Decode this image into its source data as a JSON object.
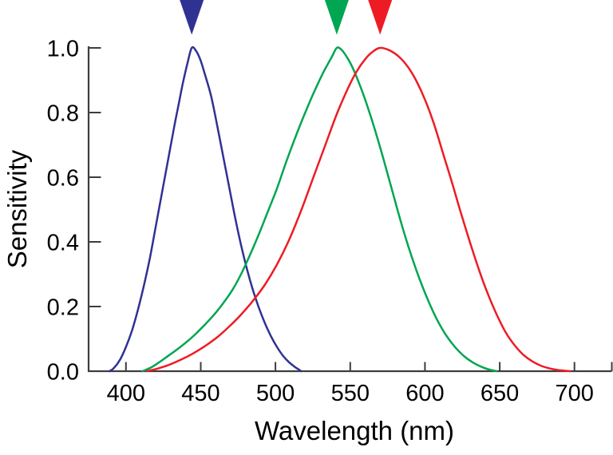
{
  "figure": {
    "background": "#ffffff",
    "axis_color": "#3d3d3d",
    "text_color": "#000000"
  },
  "chart_data": {
    "type": "line",
    "title": "",
    "xlabel": "Wavelength (nm)",
    "ylabel": "Sensitivity",
    "xlim": [
      375,
      725
    ],
    "ylim": [
      0,
      1.0
    ],
    "grid": false,
    "legend": "none",
    "x_tick_values": [
      400,
      450,
      500,
      550,
      600,
      650,
      700
    ],
    "x_tick_labels": [
      "400",
      "450",
      "500",
      "550",
      "600",
      "650",
      "700"
    ],
    "x_axis_end_tick": 725,
    "y_tick_values": [
      0,
      0.2,
      0.4,
      0.6,
      0.8,
      1.0
    ],
    "y_tick_labels": [
      "0.0",
      "0.2",
      "0.4",
      "0.6",
      "0.8",
      "1.0"
    ],
    "series": [
      {
        "id": "blue",
        "name": "blue curve (short-wavelength)",
        "color": "#2f3293",
        "peak_nm": 444,
        "peak_value": 1.0,
        "peak_arrow": true,
        "points": [
          [
            389,
            0
          ],
          [
            392,
            0.01
          ],
          [
            396,
            0.035
          ],
          [
            400,
            0.075
          ],
          [
            404,
            0.125
          ],
          [
            408,
            0.19
          ],
          [
            412,
            0.265
          ],
          [
            416,
            0.35
          ],
          [
            420,
            0.45
          ],
          [
            424,
            0.55
          ],
          [
            428,
            0.65
          ],
          [
            432,
            0.75
          ],
          [
            435,
            0.82
          ],
          [
            438,
            0.89
          ],
          [
            441,
            0.95
          ],
          [
            444,
            1.0
          ],
          [
            447,
            0.99
          ],
          [
            450,
            0.96
          ],
          [
            453,
            0.915
          ],
          [
            457,
            0.85
          ],
          [
            461,
            0.76
          ],
          [
            465,
            0.665
          ],
          [
            469,
            0.57
          ],
          [
            473,
            0.475
          ],
          [
            477,
            0.39
          ],
          [
            481,
            0.315
          ],
          [
            485,
            0.25
          ],
          [
            489,
            0.195
          ],
          [
            493,
            0.148
          ],
          [
            497,
            0.108
          ],
          [
            501,
            0.075
          ],
          [
            505,
            0.048
          ],
          [
            509,
            0.028
          ],
          [
            513,
            0.013
          ],
          [
            516,
            0.004
          ],
          [
            517,
            0
          ]
        ]
      },
      {
        "id": "green",
        "name": "green curve (middle-wavelength)",
        "color": "#00a651",
        "peak_nm": 541,
        "peak_value": 1.0,
        "peak_arrow": true,
        "points": [
          [
            411,
            0
          ],
          [
            417,
            0.012
          ],
          [
            423,
            0.03
          ],
          [
            429,
            0.05
          ],
          [
            435,
            0.07
          ],
          [
            441,
            0.092
          ],
          [
            447,
            0.117
          ],
          [
            453,
            0.145
          ],
          [
            459,
            0.175
          ],
          [
            465,
            0.21
          ],
          [
            471,
            0.25
          ],
          [
            477,
            0.3
          ],
          [
            483,
            0.36
          ],
          [
            489,
            0.425
          ],
          [
            495,
            0.495
          ],
          [
            501,
            0.565
          ],
          [
            507,
            0.645
          ],
          [
            513,
            0.72
          ],
          [
            519,
            0.79
          ],
          [
            525,
            0.855
          ],
          [
            531,
            0.915
          ],
          [
            535,
            0.95
          ],
          [
            538,
            0.975
          ],
          [
            541,
            1.0
          ],
          [
            544,
            0.995
          ],
          [
            548,
            0.97
          ],
          [
            552,
            0.935
          ],
          [
            556,
            0.89
          ],
          [
            560,
            0.84
          ],
          [
            566,
            0.755
          ],
          [
            572,
            0.66
          ],
          [
            578,
            0.56
          ],
          [
            584,
            0.46
          ],
          [
            590,
            0.37
          ],
          [
            596,
            0.29
          ],
          [
            602,
            0.22
          ],
          [
            608,
            0.16
          ],
          [
            614,
            0.112
          ],
          [
            620,
            0.075
          ],
          [
            626,
            0.047
          ],
          [
            632,
            0.027
          ],
          [
            638,
            0.013
          ],
          [
            643,
            0.005
          ],
          [
            648,
            0
          ]
        ]
      },
      {
        "id": "red",
        "name": "red curve (long-wavelength)",
        "color": "#ed1c24",
        "peak_nm": 570,
        "peak_value": 1.0,
        "peak_arrow": true,
        "points": [
          [
            414,
            0
          ],
          [
            421,
            0.008
          ],
          [
            429,
            0.02
          ],
          [
            437,
            0.036
          ],
          [
            445,
            0.055
          ],
          [
            453,
            0.078
          ],
          [
            461,
            0.105
          ],
          [
            469,
            0.138
          ],
          [
            477,
            0.175
          ],
          [
            485,
            0.218
          ],
          [
            493,
            0.268
          ],
          [
            501,
            0.33
          ],
          [
            509,
            0.405
          ],
          [
            517,
            0.495
          ],
          [
            525,
            0.595
          ],
          [
            533,
            0.695
          ],
          [
            541,
            0.795
          ],
          [
            548,
            0.87
          ],
          [
            554,
            0.925
          ],
          [
            560,
            0.965
          ],
          [
            565,
            0.988
          ],
          [
            570,
            1.0
          ],
          [
            576,
            0.993
          ],
          [
            582,
            0.975
          ],
          [
            588,
            0.945
          ],
          [
            594,
            0.9
          ],
          [
            600,
            0.84
          ],
          [
            606,
            0.765
          ],
          [
            612,
            0.675
          ],
          [
            618,
            0.585
          ],
          [
            624,
            0.49
          ],
          [
            630,
            0.4
          ],
          [
            636,
            0.315
          ],
          [
            642,
            0.24
          ],
          [
            648,
            0.175
          ],
          [
            654,
            0.12
          ],
          [
            660,
            0.08
          ],
          [
            666,
            0.05
          ],
          [
            672,
            0.03
          ],
          [
            678,
            0.016
          ],
          [
            684,
            0.008
          ],
          [
            690,
            0.003
          ],
          [
            697,
            0
          ]
        ]
      }
    ]
  }
}
